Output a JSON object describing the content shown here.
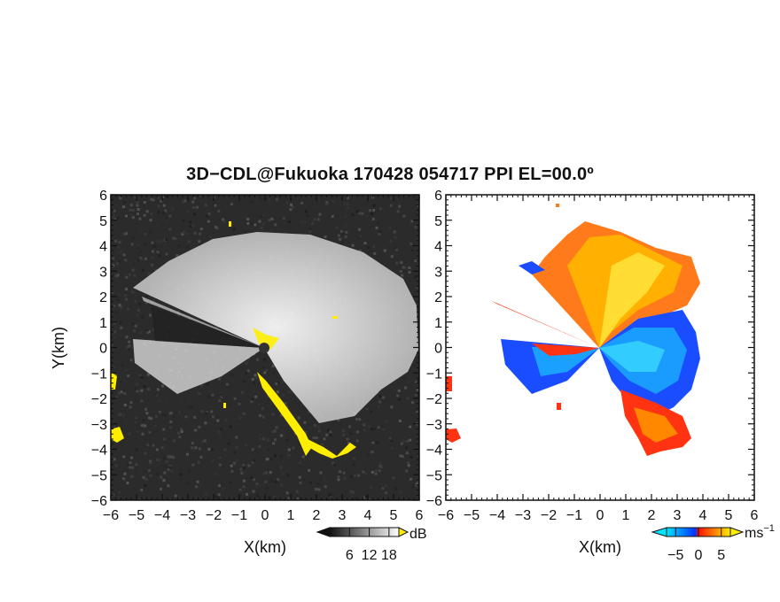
{
  "title": "3D−CDL@Fukuoka 170428 054717 PPI EL=00.0º",
  "chart_data": [
    {
      "type": "heatmap",
      "name": "reflectivity-ppi",
      "xlabel": "X(km)",
      "ylabel": "Y(km)",
      "xlim": [
        -6,
        6
      ],
      "ylim": [
        -6,
        6
      ],
      "xticks": [
        "−6",
        "−5",
        "−4",
        "−3",
        "−2",
        "−1",
        "0",
        "1",
        "2",
        "3",
        "4",
        "5",
        "6"
      ],
      "yticks": [
        "6",
        "5",
        "4",
        "3",
        "2",
        "1",
        "0",
        "−1",
        "−2",
        "−3",
        "−4",
        "−5",
        "−6"
      ],
      "colorbar": {
        "unit": "dB",
        "ticks": [
          "6",
          "12",
          "18"
        ],
        "values": [
          6,
          12,
          18
        ],
        "range": [
          0,
          21
        ],
        "colors": [
          "#111111",
          "#ffffff"
        ],
        "saturated_color": "#ffee00"
      }
    },
    {
      "type": "heatmap",
      "name": "doppler-velocity-ppi",
      "xlabel": "X(km)",
      "ylabel": "",
      "xlim": [
        -6,
        6
      ],
      "ylim": [
        -6,
        6
      ],
      "xticks": [
        "−6",
        "−5",
        "−4",
        "−3",
        "−2",
        "−1",
        "0",
        "1",
        "2",
        "3",
        "4",
        "5",
        "6"
      ],
      "yticks": [
        "6",
        "5",
        "4",
        "3",
        "2",
        "1",
        "0",
        "−1",
        "−2",
        "−3",
        "−4",
        "−5",
        "−6"
      ],
      "colorbar": {
        "unit": "ms",
        "unit_exponent": "−1",
        "ticks": [
          "−5",
          "0",
          "5"
        ],
        "values": [
          -5,
          0,
          5
        ],
        "range": [
          -7,
          7
        ],
        "colors": [
          "#00e5ff",
          "#0033ff",
          "#ff1100",
          "#ffee00"
        ]
      }
    }
  ]
}
